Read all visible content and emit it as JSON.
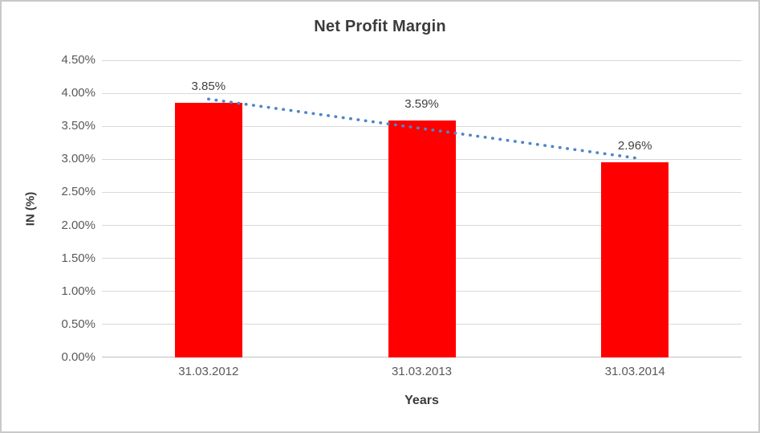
{
  "chart_data": {
    "type": "bar",
    "title": "Net Profit Margin",
    "categories": [
      "31.03.2012",
      "31.03.2013",
      "31.03.2014"
    ],
    "series": [
      {
        "name": "Net Profit Margin",
        "values": [
          3.85,
          3.59,
          2.96
        ]
      }
    ],
    "data_labels": [
      "3.85%",
      "3.59%",
      "2.96%"
    ],
    "xlabel": "Years",
    "ylabel": "IN (%)",
    "ylim": [
      0,
      4.5
    ],
    "ytick_step": 0.5,
    "ytick_labels": [
      "0.00%",
      "0.50%",
      "1.00%",
      "1.50%",
      "2.00%",
      "2.50%",
      "3.00%",
      "3.50%",
      "4.00%",
      "4.50%"
    ],
    "grid": true,
    "legend": "none",
    "bar_color": "#ff0000",
    "trendline": {
      "type": "linear",
      "style": "dotted",
      "color": "#4e86c8"
    }
  }
}
